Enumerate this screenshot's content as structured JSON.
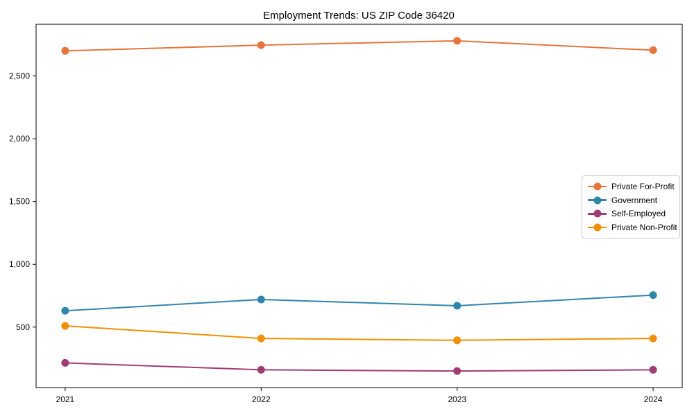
{
  "chart_data": {
    "type": "line",
    "title": "Employment Trends: US ZIP Code 36420",
    "x": [
      2021,
      2022,
      2023,
      2024
    ],
    "xtick_labels": [
      "2021",
      "2022",
      "2023",
      "2024"
    ],
    "series": [
      {
        "name": "Private For-Profit",
        "color": "#E8743B",
        "values": [
          2700,
          2745,
          2780,
          2705
        ]
      },
      {
        "name": "Government",
        "color": "#2E86AB",
        "values": [
          630,
          720,
          670,
          755
        ]
      },
      {
        "name": "Self-Employed",
        "color": "#A23B72",
        "values": [
          215,
          160,
          150,
          160
        ]
      },
      {
        "name": "Private Non-Profit",
        "color": "#F18F01",
        "values": [
          510,
          410,
          395,
          410
        ]
      }
    ],
    "xlabel": "",
    "ylabel": "",
    "ylim": [
      18.5,
      2911.5
    ],
    "yticks": [
      500,
      1000,
      1500,
      2000,
      2500
    ],
    "ytick_labels": [
      "500",
      "1,000",
      "1,500",
      "2,000",
      "2,500"
    ],
    "grid": false,
    "legend_position": "center-right",
    "axis_color": "#000000",
    "background_color": "#ffffff"
  }
}
